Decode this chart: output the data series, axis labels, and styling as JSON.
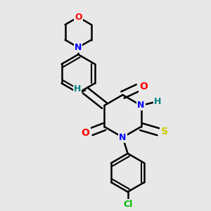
{
  "bg_color": "#e8e8e8",
  "bond_color": "#000000",
  "line_width": 1.8,
  "atom_colors": {
    "O": "#ff0000",
    "N": "#0000ff",
    "S": "#cccc00",
    "Cl": "#00bb00",
    "H": "#008080",
    "C": "#000000"
  },
  "font_size": 9,
  "xlim": [
    0.0,
    1.0
  ],
  "ylim": [
    0.0,
    1.0
  ]
}
